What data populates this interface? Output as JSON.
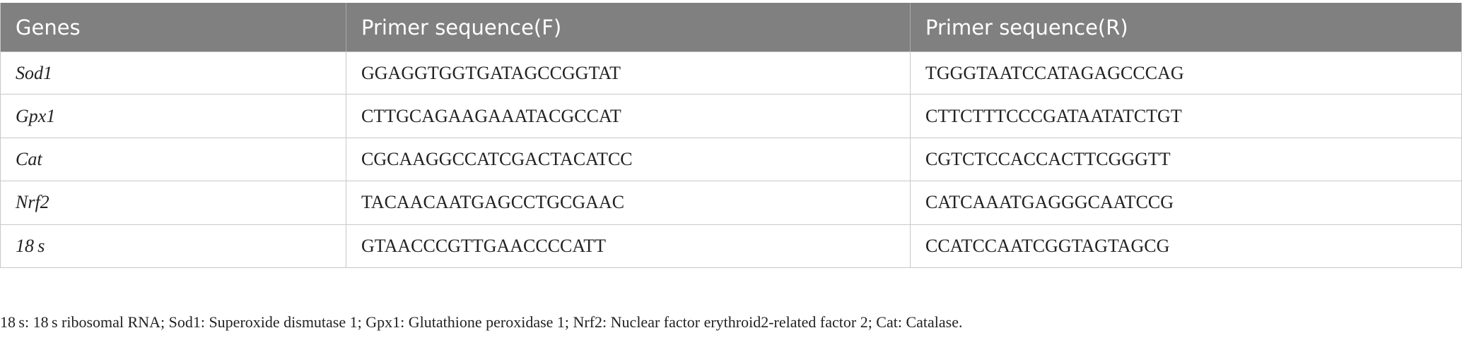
{
  "table": {
    "header": [
      "Genes",
      "Primer sequence(F)",
      "Primer sequence(R)"
    ],
    "rows": [
      [
        "Sod1",
        "GGAGGTGGTGATAGCCGGTAT",
        "TGGGTAATCCATAGAGCCCAG"
      ],
      [
        "Gpx1",
        "CTTGCAGAAGAAATACGCCAT",
        "CTTCTTTCCCGATAATATCTGT"
      ],
      [
        "Cat",
        "CGCAAGGCCATCGACTACATCC",
        "CGTCTCCACCACTTCGGGTT"
      ],
      [
        "Nrf2",
        "TACAACAATGAGCCTGCGAAC",
        "CATCAAATGAGGGCAATCCG"
      ],
      [
        "18 s",
        "GTAACCCGTTGAACCCCATT",
        "CCATCCAATCGGTAGTAGCG"
      ]
    ]
  },
  "footnote": "18 s: 18 s ribosomal RNA; Sod1: Superoxide dismutase 1; Gpx1: Glutathione peroxidase 1; Nrf2: Nuclear factor erythroid2-related factor 2; Cat: Catalase."
}
